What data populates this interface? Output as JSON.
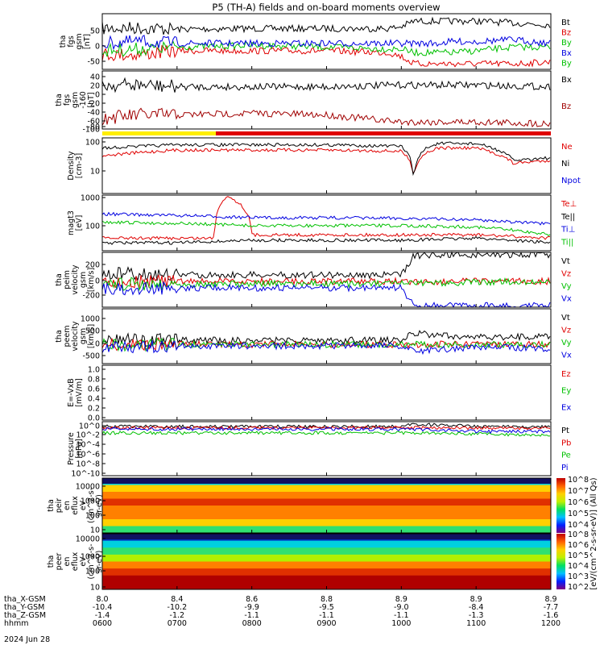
{
  "title": "P5 (TH-A) fields and on-board moments overview",
  "date_label": "2024 Jun 28",
  "colorbar_label": "[eV/(cm^2-s-sr-eV)] (All Qs)",
  "colorbar_ticks": [
    "10^8",
    "10^6",
    "10^5",
    "10^4",
    "10^3",
    "10^2"
  ],
  "colorbar_ticks_upper": [
    "10^8",
    "10^7",
    "10^6",
    "10^5",
    "10^4"
  ],
  "ephemeris": {
    "row_labels": [
      "tha_X-GSM",
      "tha_Y-GSM",
      "tha_Z-GSM",
      "hhmm"
    ],
    "columns": [
      [
        "8.0",
        "-10.4",
        "-1.4",
        "0600"
      ],
      [
        "8.4",
        "-10.2",
        "-1.2",
        "0700"
      ],
      [
        "8.6",
        "-9.9",
        "-1.1",
        "0800"
      ],
      [
        "8.8",
        "-9.5",
        "-1.1",
        "0900"
      ],
      [
        "8.9",
        "-9.0",
        "-1.1",
        "1000"
      ],
      [
        "8.9",
        "-8.4",
        "-1.3",
        "1100"
      ],
      [
        "8.9",
        "-7.7",
        "-1.6",
        "1200"
      ]
    ]
  },
  "panels": [
    {
      "ylabel": [
        "tha",
        "fgs",
        "gsm",
        "[nT]"
      ],
      "ticks": [
        "50",
        "0",
        "-50"
      ],
      "legend": [
        [
          "Bt",
          "#000000"
        ],
        [
          "Bz",
          "#e00000"
        ],
        [
          "By",
          "#00c000"
        ],
        [
          "Bx",
          "#0000e0"
        ],
        [
          "By",
          "#00c000"
        ]
      ]
    },
    {
      "ylabel": [
        "tha",
        "fgs",
        "gsm",
        "-160",
        "[nT]"
      ],
      "ticks": [
        "40",
        "20",
        "0",
        "-20",
        "-40",
        "-60",
        "-80",
        "-100"
      ],
      "legend": [
        [
          "Bx",
          "#000000"
        ],
        [
          "Bz",
          "#a00000"
        ]
      ]
    },
    {
      "ylabel": [
        "Density",
        "[cm-3]"
      ],
      "ticks": [
        "100",
        "10"
      ],
      "legend": [
        [
          "Ne",
          "#e00000"
        ],
        [
          "Ni",
          "#000000"
        ],
        [
          "Npot",
          "#0000e0"
        ]
      ]
    },
    {
      "ylabel": [
        "magt3",
        "[eV]"
      ],
      "ticks": [
        "1000",
        "100"
      ],
      "legend": [
        [
          "Te⊥",
          "#e00000"
        ],
        [
          "Te||",
          "#000000"
        ],
        [
          "Ti⊥",
          "#0000e0"
        ],
        [
          "Ti||",
          "#00c000"
        ]
      ]
    },
    {
      "ylabel": [
        "tha",
        "peim",
        "velocity",
        "gsm",
        "[km/s]"
      ],
      "ticks": [
        "200",
        "0",
        "-200"
      ],
      "legend": [
        [
          "Vt",
          "#000000"
        ],
        [
          "Vz",
          "#e00000"
        ],
        [
          "Vy",
          "#00c000"
        ],
        [
          "Vx",
          "#0000e0"
        ]
      ]
    },
    {
      "ylabel": [
        "tha",
        "peem",
        "velocity",
        "gsm",
        "[km/s]"
      ],
      "ticks": [
        "1000",
        "500",
        "0",
        "-500"
      ],
      "legend": [
        [
          "Vt",
          "#000000"
        ],
        [
          "Vz",
          "#e00000"
        ],
        [
          "Vy",
          "#00c000"
        ],
        [
          "Vx",
          "#0000e0"
        ]
      ]
    },
    {
      "ylabel": [
        "E=-VxB",
        "[mV/m]"
      ],
      "ticks": [
        "1.0",
        "0.8",
        "0.6",
        "0.4",
        "0.2",
        "0.0"
      ],
      "legend": [
        [
          "Ez",
          "#e00000"
        ],
        [
          "Ey",
          "#00c000"
        ],
        [
          "Ex",
          "#0000e0"
        ]
      ]
    },
    {
      "ylabel": [
        "Pressure",
        "[nPa]"
      ],
      "ticks": [
        "10^0",
        "10^-2",
        "10^-4",
        "10^-6",
        "10^-8",
        "10^-10"
      ],
      "legend": [
        [
          "Pt",
          "#000000"
        ],
        [
          "Pb",
          "#e00000"
        ],
        [
          "Pe",
          "#00c000"
        ],
        [
          "Pi",
          "#0000e0"
        ]
      ]
    },
    {
      "ylabel": [
        "tha",
        "peir",
        "en",
        "eflux",
        "eV",
        "(cm^2-s-",
        "sr-eV)"
      ],
      "ticks": [
        "10000",
        "1000",
        "100",
        "10"
      ],
      "legend": []
    },
    {
      "ylabel": [
        "tha",
        "peer",
        "en",
        "eflux",
        "eV",
        "(cm^2-s-",
        "sr-eV)"
      ],
      "ticks": [
        "10000",
        "1000",
        "100",
        "10"
      ],
      "legend": []
    }
  ],
  "chart_data": {
    "type": "line",
    "title": "P5 (TH-A) fields and on-board moments overview",
    "x_axis": {
      "hhmm": [
        "0600",
        "0700",
        "0800",
        "0900",
        "1000",
        "1100",
        "1200"
      ],
      "date": "2024 Jun 28"
    },
    "panels": [
      {
        "name": "fgs gsm B",
        "units": "nT",
        "ylim": [
          -70,
          80
        ],
        "series": [
          {
            "name": "Bt",
            "x": [
              "0600",
              "0630",
              "0700",
              "0800",
              "0900",
              "0950",
              "1000",
              "1010",
              "1030",
              "1040",
              "1100",
              "1130",
              "1200"
            ],
            "values": [
              40,
              42,
              38,
              40,
              40,
              40,
              45,
              60,
              60,
              60,
              60,
              55,
              50
            ]
          },
          {
            "name": "Bz",
            "x": [
              "0600",
              "0630",
              "0700",
              "0800",
              "0900",
              "0950",
              "1000",
              "1010",
              "1030",
              "1040",
              "1100",
              "1130",
              "1200"
            ],
            "values": [
              -30,
              -30,
              -20,
              -20,
              -20,
              -25,
              -35,
              -55,
              -55,
              -55,
              -55,
              -55,
              -50
            ]
          },
          {
            "name": "By",
            "x": [
              "0600",
              "0630",
              "0700",
              "0800",
              "0900",
              "0950",
              "1000",
              "1010",
              "1030",
              "1040",
              "1100",
              "1130",
              "1200"
            ],
            "values": [
              -20,
              -15,
              -10,
              -5,
              -10,
              -15,
              -15,
              -25,
              -25,
              -25,
              -20,
              -10,
              -10
            ]
          },
          {
            "name": "Bx",
            "x": [
              "0600",
              "0630",
              "0700",
              "0800",
              "0900",
              "0950",
              "1000",
              "1010",
              "1030",
              "1040",
              "1100",
              "1130",
              "1200"
            ],
            "values": [
              0,
              5,
              0,
              0,
              0,
              0,
              0,
              0,
              0,
              5,
              5,
              10,
              0
            ]
          }
        ]
      },
      {
        "name": "fgs gsm -160",
        "units": "nT",
        "ylim": [
          -120,
          45
        ],
        "series": [
          {
            "name": "Bx",
            "x": [
              "0600",
              "0630",
              "0700",
              "0800",
              "0900",
              "1000",
              "1100",
              "1200"
            ],
            "values": [
              5,
              5,
              0,
              0,
              0,
              5,
              5,
              0
            ]
          },
          {
            "name": "Bz",
            "x": [
              "0600",
              "0630",
              "0700",
              "0800",
              "0900",
              "1000",
              "1100",
              "1200"
            ],
            "values": [
              -90,
              -80,
              -80,
              -75,
              -80,
              -100,
              -100,
              -105
            ]
          }
        ]
      },
      {
        "name": "Density",
        "units": "cm-3",
        "scale": "log",
        "ylim": [
          1,
          150
        ],
        "series": [
          {
            "name": "Ne",
            "x": [
              "0600",
              "0700",
              "0800",
              "0900",
              "1000",
              "1010",
              "1020",
              "1030",
              "1100",
              "1130",
              "1200"
            ],
            "values": [
              30,
              50,
              50,
              50,
              45,
              5,
              40,
              60,
              60,
              15,
              20
            ]
          },
          {
            "name": "Ni",
            "x": [
              "0600",
              "0700",
              "0800",
              "0900",
              "1000",
              "1010",
              "1020",
              "1030",
              "1100",
              "1130",
              "1200"
            ],
            "values": [
              60,
              80,
              80,
              80,
              70,
              3,
              60,
              90,
              90,
              20,
              25
            ]
          }
        ]
      },
      {
        "name": "magt3",
        "units": "eV",
        "scale": "log",
        "ylim": [
          10,
          1300
        ],
        "series": [
          {
            "name": "Te⊥",
            "x": [
              "0600",
              "0700",
              "0730",
              "0740",
              "0800",
              "0900",
              "1000",
              "1100",
              "1200"
            ],
            "values": [
              30,
              30,
              30,
              1200,
              40,
              40,
              40,
              40,
              30
            ]
          },
          {
            "name": "Te||",
            "x": [
              "0600",
              "0700",
              "0800",
              "0900",
              "1000",
              "1100",
              "1200"
            ],
            "values": [
              20,
              20,
              25,
              25,
              25,
              30,
              20
            ]
          },
          {
            "name": "Ti⊥",
            "x": [
              "0600",
              "0700",
              "0800",
              "0900",
              "1000",
              "1100",
              "1200"
            ],
            "values": [
              250,
              220,
              180,
              180,
              170,
              150,
              100
            ]
          },
          {
            "name": "Ti||",
            "x": [
              "0600",
              "0700",
              "0800",
              "0900",
              "1000",
              "1100",
              "1200"
            ],
            "values": [
              120,
              110,
              90,
              90,
              90,
              80,
              40
            ]
          }
        ]
      },
      {
        "name": "peim velocity gsm",
        "units": "km/s",
        "ylim": [
          -320,
          360
        ],
        "series": [
          {
            "name": "Vt",
            "x": [
              "0600",
              "0700",
              "0800",
              "0900",
              "1000",
              "1010",
              "1030",
              "1100",
              "1200"
            ],
            "values": [
              100,
              80,
              80,
              80,
              80,
              320,
              330,
              330,
              330
            ]
          },
          {
            "name": "Vz",
            "x": [
              "0600",
              "0700",
              "0800",
              "0900",
              "1000",
              "1100",
              "1200"
            ],
            "values": [
              0,
              0,
              0,
              0,
              0,
              0,
              0
            ]
          },
          {
            "name": "Vy",
            "x": [
              "0600",
              "0700",
              "0800",
              "0900",
              "1000",
              "1100",
              "1200"
            ],
            "values": [
              -30,
              -30,
              -30,
              -30,
              -30,
              -10,
              0
            ]
          },
          {
            "name": "Vx",
            "x": [
              "0600",
              "0700",
              "0800",
              "0900",
              "1000",
              "1010",
              "1030",
              "1100",
              "1200"
            ],
            "values": [
              -100,
              -80,
              -80,
              -80,
              -80,
              -300,
              -300,
              -300,
              -300
            ]
          }
        ]
      },
      {
        "name": "peem velocity gsm",
        "units": "km/s",
        "ylim": [
          -700,
          1300
        ],
        "series": [
          {
            "name": "Vt",
            "x": [
              "0600",
              "0700",
              "0800",
              "0900",
              "1000",
              "1010",
              "1100",
              "1200"
            ],
            "values": [
              200,
              150,
              150,
              150,
              150,
              400,
              250,
              300
            ]
          },
          {
            "name": "Vz",
            "x": [
              "0600",
              "0700",
              "0800",
              "0900",
              "1000",
              "1100",
              "1200"
            ],
            "values": [
              0,
              0,
              0,
              0,
              0,
              0,
              0
            ]
          },
          {
            "name": "Vy",
            "x": [
              "0600",
              "0700",
              "0800",
              "0900",
              "1000",
              "1100",
              "1200"
            ],
            "values": [
              0,
              0,
              0,
              0,
              0,
              0,
              0
            ]
          },
          {
            "name": "Vx",
            "x": [
              "0600",
              "0700",
              "0800",
              "0900",
              "1000",
              "1010",
              "1100",
              "1200"
            ],
            "values": [
              -100,
              -50,
              -50,
              -50,
              -50,
              -250,
              -100,
              -150
            ]
          }
        ]
      },
      {
        "name": "E=-VxB",
        "units": "mV/m",
        "ylim": [
          0.0,
          1.0
        ],
        "series": []
      },
      {
        "name": "Pressure",
        "units": "nPa",
        "scale": "log",
        "ylim": [
          "1e-10",
          "1e1"
        ],
        "series": [
          {
            "name": "Pt",
            "x": [
              "0600",
              "0700",
              "0800",
              "0900",
              "1000",
              "1010",
              "1100",
              "1200"
            ],
            "values": [
              1.0,
              1.0,
              1.0,
              1.0,
              1.0,
              3.0,
              1.0,
              1.0
            ]
          },
          {
            "name": "Pb",
            "x": [
              "0600",
              "0700",
              "0800",
              "0900",
              "1000",
              "1100",
              "1200"
            ],
            "values": [
              0.5,
              0.6,
              0.6,
              0.6,
              0.6,
              0.5,
              0.5
            ]
          },
          {
            "name": "Pe",
            "x": [
              "0600",
              "0700",
              "0800",
              "0900",
              "1000",
              "1100",
              "1200"
            ],
            "values": [
              0.05,
              0.05,
              0.05,
              0.05,
              0.05,
              0.03,
              0.02
            ]
          },
          {
            "name": "Pi",
            "x": [
              "0600",
              "0700",
              "0800",
              "0900",
              "1000",
              "1100",
              "1200"
            ],
            "values": [
              0.3,
              0.3,
              0.3,
              0.3,
              0.3,
              0.1,
              0.1
            ]
          }
        ]
      },
      {
        "name": "peir en eflux",
        "type": "heatmap",
        "units": "eV/(cm^2-s-sr-eV)",
        "ylim": [
          5,
          20000
        ]
      },
      {
        "name": "peer en eflux",
        "type": "heatmap",
        "units": "eV/(cm^2-s-sr-eV)",
        "ylim": [
          5,
          20000
        ]
      }
    ]
  }
}
